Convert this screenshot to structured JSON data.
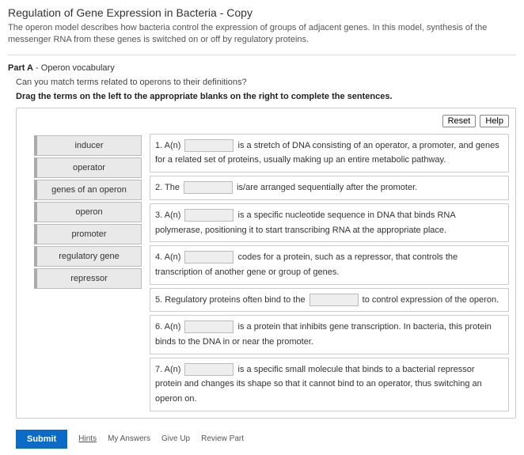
{
  "header": {
    "title": "Regulation of Gene Expression in Bacteria - Copy",
    "intro": "The operon model describes how bacteria control the expression of groups of adjacent genes. In this model, synthesis of the messenger RNA from these genes is switched on or off by regulatory proteins."
  },
  "part": {
    "label_bold": "Part A",
    "label_rest": " - Operon vocabulary",
    "question": "Can you match terms related to operons to their definitions?",
    "instruction": "Drag the terms on the left to the appropriate blanks on the right to complete the sentences."
  },
  "buttons": {
    "reset": "Reset",
    "help": "Help",
    "submit": "Submit",
    "hints": "Hints",
    "my_answers": "My Answers",
    "give_up": "Give Up",
    "review": "Review Part"
  },
  "terms": [
    "inducer",
    "operator",
    "genes of an operon",
    "operon",
    "promoter",
    "regulatory gene",
    "repressor"
  ],
  "defs": {
    "d1a": "1. A(n) ",
    "d1b": " is a stretch of DNA consisting of an operator, a promoter, and genes for a related set of proteins, usually making up an entire metabolic pathway.",
    "d2a": "2. The ",
    "d2b": " is/are arranged sequentially after the promoter.",
    "d3a": "3. A(n) ",
    "d3b": " is a specific nucleotide sequence in DNA that binds RNA polymerase, positioning it to start transcribing RNA at the appropriate place.",
    "d4a": "4. A(n) ",
    "d4b": " codes for a protein, such as a repressor, that controls the transcription of another gene or group of genes.",
    "d5a": "5. Regulatory proteins often bind to the ",
    "d5b": " to control expression of the operon.",
    "d6a": "6. A(n) ",
    "d6b": " is a protein that inhibits gene transcription. In bacteria, this protein binds to the DNA in or near the promoter.",
    "d7a": "7. A(n) ",
    "d7b": " is a specific small molecule that binds to a bacterial repressor protein and changes its shape so that it cannot bind to an operator, thus switching an operon on."
  }
}
